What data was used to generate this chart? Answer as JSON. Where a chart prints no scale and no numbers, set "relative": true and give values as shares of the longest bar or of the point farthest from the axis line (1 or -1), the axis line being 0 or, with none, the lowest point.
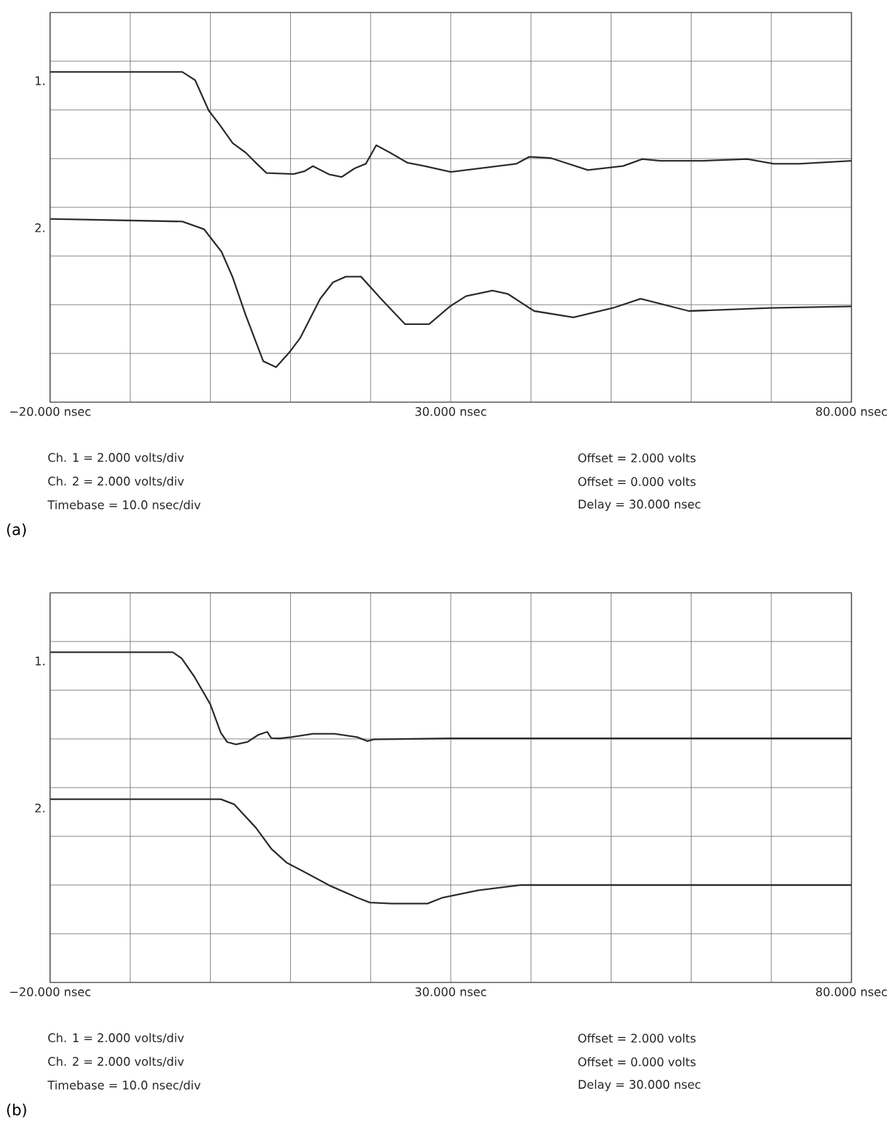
{
  "chart_data": [
    {
      "type": "line",
      "title": "(a)",
      "relative": true,
      "xlim": [
        -20,
        80
      ],
      "grid": true,
      "xticks": [
        {
          "value": -20,
          "label": "−20.000 nsec"
        },
        {
          "value": -10,
          "label": null
        },
        {
          "value": 0,
          "label": null
        },
        {
          "value": 10,
          "label": null
        },
        {
          "value": 20,
          "label": null
        },
        {
          "value": 30,
          "label": "30.000 nsec"
        },
        {
          "value": 40,
          "label": null
        },
        {
          "value": 50,
          "label": null
        },
        {
          "value": 60,
          "label": null
        },
        {
          "value": 70,
          "label": null
        },
        {
          "value": 80,
          "label": "80.000 nsec"
        }
      ],
      "series": [
        {
          "name": "1.",
          "color": "#2b2b2b",
          "x": [
            -20,
            -3.5,
            -1.9,
            -0.2,
            1.1,
            2.8,
            4.4,
            5.8,
            7.0,
            10.4,
            11.8,
            12.8,
            14.8,
            16.4,
            18.0,
            19.4,
            20.7,
            22.4,
            24.6,
            26.7,
            30.0,
            38.2,
            39.8,
            42.5,
            47.1,
            51.5,
            53.9,
            56.1,
            61.5,
            67.0,
            70.3,
            73.5,
            80
          ],
          "values": [
            1,
            1,
            0.975,
            0.883,
            0.842,
            0.784,
            0.756,
            0.722,
            0.694,
            0.691,
            0.7,
            0.715,
            0.69,
            0.682,
            0.708,
            0.722,
            0.778,
            0.756,
            0.725,
            0.715,
            0.697,
            0.722,
            0.743,
            0.739,
            0.703,
            0.715,
            0.736,
            0.731,
            0.731,
            0.736,
            0.722,
            0.722,
            0.731
          ]
        },
        {
          "name": "2.",
          "color": "#2b2b2b",
          "x": [
            -20,
            -3.5,
            -0.8,
            1.4,
            2.8,
            4.4,
            6.6,
            8.2,
            9.9,
            11.2,
            13.7,
            15.3,
            16.9,
            18.8,
            21.3,
            24.3,
            27.3,
            30.0,
            31.9,
            35.2,
            37.1,
            40.4,
            45.3,
            50.2,
            53.7,
            59.7,
            69.8,
            80
          ],
          "values": [
            0.555,
            0.547,
            0.524,
            0.455,
            0.377,
            0.264,
            0.124,
            0.106,
            0.152,
            0.194,
            0.313,
            0.363,
            0.38,
            0.38,
            0.313,
            0.236,
            0.236,
            0.292,
            0.321,
            0.338,
            0.328,
            0.276,
            0.257,
            0.285,
            0.313,
            0.276,
            0.285,
            0.29
          ]
        }
      ],
      "annotations": [
        "Ch. 1 = 2.000 volts/div",
        "Ch. 2 = 2.000 volts/div",
        "Timebase = 10.0 nsec/div",
        "Offset = 2.000 volts",
        "Offset = 0.000 volts",
        "Delay = 30.000 nsec"
      ]
    },
    {
      "type": "line",
      "title": "(b)",
      "relative": true,
      "xlim": [
        -20,
        80
      ],
      "grid": true,
      "xticks": [
        {
          "value": -20,
          "label": "−20.000 nsec"
        },
        {
          "value": -10,
          "label": null
        },
        {
          "value": 0,
          "label": null
        },
        {
          "value": 10,
          "label": null
        },
        {
          "value": 20,
          "label": null
        },
        {
          "value": 30,
          "label": "30.000 nsec"
        },
        {
          "value": 40,
          "label": null
        },
        {
          "value": 50,
          "label": null
        },
        {
          "value": 60,
          "label": null
        },
        {
          "value": 70,
          "label": null
        },
        {
          "value": 80,
          "label": "80.000 nsec"
        }
      ],
      "series": [
        {
          "name": "1.",
          "color": "#2b2b2b",
          "x": [
            -20,
            -4.7,
            -3.6,
            -2.0,
            0.0,
            1.3,
            2.1,
            3.2,
            4.6,
            6.0,
            7.1,
            7.6,
            8.7,
            10.1,
            12.8,
            15.5,
            18.3,
            19.6,
            20.4,
            30,
            80
          ],
          "values": [
            1,
            1,
            0.982,
            0.926,
            0.842,
            0.756,
            0.728,
            0.721,
            0.728,
            0.75,
            0.759,
            0.74,
            0.739,
            0.743,
            0.753,
            0.753,
            0.743,
            0.731,
            0.736,
            0.739,
            0.739
          ]
        },
        {
          "name": "2.",
          "color": "#2b2b2b",
          "x": [
            -20,
            1.3,
            3.0,
            5.7,
            7.6,
            9.5,
            11.7,
            15.0,
            18.3,
            19.9,
            22.6,
            27.1,
            29.0,
            33.4,
            38.8,
            80
          ],
          "values": [
            0.555,
            0.555,
            0.539,
            0.468,
            0.405,
            0.363,
            0.335,
            0.292,
            0.257,
            0.242,
            0.239,
            0.239,
            0.257,
            0.279,
            0.295,
            0.295
          ]
        }
      ],
      "annotations": [
        "Ch. 1 = 2.000 volts/div",
        "Ch. 2 = 2.000 volts/div",
        "Timebase = 10.0 nsec/div",
        "Offset = 2.000 volts",
        "Offset = 0.000 volts",
        "Delay = 30.000 nsec"
      ]
    }
  ]
}
